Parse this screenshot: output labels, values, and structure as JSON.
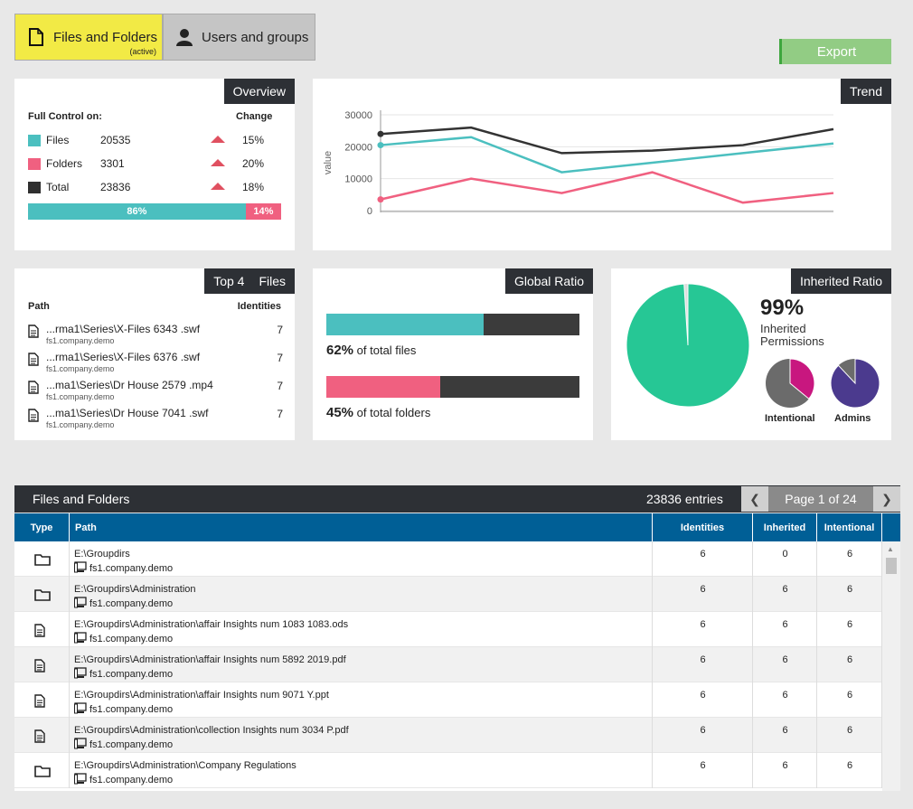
{
  "tabs": [
    {
      "label": "Files and Folders",
      "sub": "(active)",
      "icon": "file-icon"
    },
    {
      "label": "Users and groups",
      "icon": "user-icon"
    }
  ],
  "export_label": "Export",
  "overview": {
    "title": "Overview",
    "header_left": "Full Control on:",
    "header_right": "Change",
    "rows": [
      {
        "name": "Files",
        "value": "20535",
        "change": "15%",
        "color": "#4bbfbf"
      },
      {
        "name": "Folders",
        "value": "3301",
        "change": "20%",
        "color": "#f06080"
      },
      {
        "name": "Total",
        "value": "23836",
        "change": "18%",
        "color": "#2f2f2f"
      }
    ],
    "bar": {
      "left_label": "86%",
      "right_label": "14%",
      "left_fraction": 0.86,
      "left_color": "#4bbfbf",
      "right_color": "#f06080"
    }
  },
  "trend": {
    "title": "Trend",
    "chart_data": {
      "type": "line",
      "ylabel": "value",
      "ylim": [
        0,
        30000
      ],
      "yticks": [
        "30000",
        "20000",
        "10000",
        "0"
      ],
      "x": [
        0,
        1,
        2,
        3,
        4,
        5
      ],
      "series": [
        {
          "values": [
            24000,
            26000,
            18000,
            18800,
            20500,
            25500
          ],
          "color": "#333333"
        },
        {
          "values": [
            20500,
            23000,
            12000,
            15000,
            18000,
            21000
          ],
          "color": "#4bbfbf"
        },
        {
          "values": [
            3500,
            10000,
            5500,
            12000,
            2500,
            5500
          ],
          "color": "#f06080"
        }
      ]
    }
  },
  "top4": {
    "title_a": "Top 4",
    "title_b": "Files",
    "header_left": "Path",
    "header_right": "Identities",
    "items": [
      {
        "path": "...rma1\\Series\\X-Files 6343 .swf",
        "server": "fs1.company.demo",
        "value": "7"
      },
      {
        "path": "...rma1\\Series\\X-Files 6376 .swf",
        "server": "fs1.company.demo",
        "value": "7"
      },
      {
        "path": "...ma1\\Series\\Dr House 2579 .mp4",
        "server": "fs1.company.demo",
        "value": "7"
      },
      {
        "path": "...ma1\\Series\\Dr House 7041 .swf",
        "server": "fs1.company.demo",
        "value": "7"
      }
    ]
  },
  "global_ratio": {
    "title": "Global Ratio",
    "files": {
      "pct": "62%",
      "text": "of total files",
      "fraction": 0.62,
      "color": "#4bbfbf"
    },
    "folders": {
      "pct": "45%",
      "text": "of total folders",
      "fraction": 0.45,
      "color": "#f06080"
    }
  },
  "inherited_ratio": {
    "title": "Inherited Ratio",
    "pct": "99%",
    "label": "Inherited Permissions",
    "main_fraction": 0.99,
    "main_color": "#26c795",
    "intentional_label": "Intentional",
    "intentional_fraction": 0.36,
    "intentional_color": "#c8177f",
    "admins_label": "Admins",
    "admins_fraction": 0.88,
    "admins_color": "#4b3a8e",
    "rest_color": "#6b6b6b"
  },
  "table": {
    "title": "Files and Folders",
    "entries": "23836 entries",
    "page": "Page 1 of 24",
    "prev_icon": "chevron-left-icon",
    "next_icon": "chevron-right-icon",
    "columns": {
      "type": "Type",
      "path": "Path",
      "identities": "Identities",
      "inherited": "Inherited",
      "intentional": "Intentional"
    },
    "rows": [
      {
        "type": "folder",
        "path": "E:\\Groupdirs",
        "server": "fs1.company.demo",
        "identities": "6",
        "inherited": "0",
        "intentional": "6"
      },
      {
        "type": "folder",
        "path": "E:\\Groupdirs\\Administration",
        "server": "fs1.company.demo",
        "identities": "6",
        "inherited": "6",
        "intentional": "6"
      },
      {
        "type": "file",
        "path": "E:\\Groupdirs\\Administration\\affair Insights num  1083  1083.ods",
        "server": "fs1.company.demo",
        "identities": "6",
        "inherited": "6",
        "intentional": "6"
      },
      {
        "type": "file",
        "path": "E:\\Groupdirs\\Administration\\affair Insights num  5892  2019.pdf",
        "server": "fs1.company.demo",
        "identities": "6",
        "inherited": "6",
        "intentional": "6"
      },
      {
        "type": "file",
        "path": "E:\\Groupdirs\\Administration\\affair Insights num  9071  Y.ppt",
        "server": "fs1.company.demo",
        "identities": "6",
        "inherited": "6",
        "intentional": "6"
      },
      {
        "type": "file",
        "path": "E:\\Groupdirs\\Administration\\collection Insights num  3034  P.pdf",
        "server": "fs1.company.demo",
        "identities": "6",
        "inherited": "6",
        "intentional": "6"
      },
      {
        "type": "folder",
        "path": "E:\\Groupdirs\\Administration\\Company Regulations",
        "server": "fs1.company.demo",
        "identities": "6",
        "inherited": "6",
        "intentional": "6"
      }
    ]
  }
}
